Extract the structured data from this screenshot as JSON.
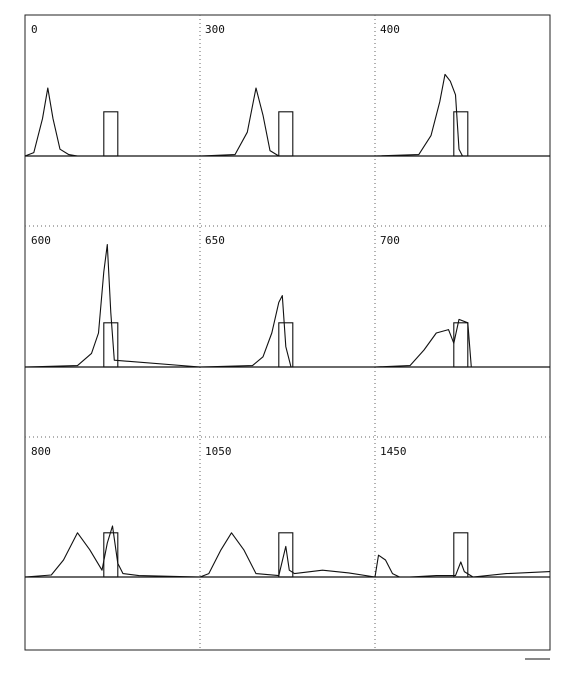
{
  "chart_data": {
    "type": "line",
    "title": "",
    "xlabel": "",
    "ylabel": "",
    "grid": true,
    "layout": "3x3 small multiples",
    "panels": [
      {
        "label": "0",
        "packet": {
          "x": [
            0.0,
            0.05,
            0.1,
            0.13,
            0.16,
            0.2,
            0.25,
            0.3,
            1.0
          ],
          "y": [
            0.0,
            0.05,
            0.55,
            1.0,
            0.55,
            0.1,
            0.02,
            0.0,
            0.0
          ]
        },
        "barrier": {
          "x_start": 0.45,
          "x_end": 0.53,
          "height": 0.65
        }
      },
      {
        "label": "300",
        "packet": {
          "x": [
            0.0,
            0.2,
            0.27,
            0.32,
            0.36,
            0.4,
            0.45,
            1.0
          ],
          "y": [
            0.0,
            0.02,
            0.35,
            1.0,
            0.6,
            0.08,
            0.0,
            0.0
          ]
        },
        "barrier": {
          "x_start": 0.45,
          "x_end": 0.53,
          "height": 0.65
        }
      },
      {
        "label": "400",
        "packet": {
          "x": [
            0.0,
            0.25,
            0.32,
            0.37,
            0.4,
            0.43,
            0.46,
            0.48,
            0.5,
            1.0
          ],
          "y": [
            0.0,
            0.02,
            0.3,
            0.8,
            1.2,
            1.1,
            0.9,
            0.1,
            0.0,
            0.0
          ]
        },
        "barrier": {
          "x_start": 0.45,
          "x_end": 0.53,
          "height": 0.65
        }
      },
      {
        "label": "600",
        "packet": {
          "x": [
            0.0,
            0.3,
            0.38,
            0.42,
            0.45,
            0.47,
            0.49,
            0.51,
            1.0
          ],
          "y": [
            0.0,
            0.02,
            0.2,
            0.5,
            1.4,
            1.8,
            0.8,
            0.1,
            0.0
          ]
        },
        "barrier": {
          "x_start": 0.45,
          "x_end": 0.53,
          "height": 0.65
        }
      },
      {
        "label": "650",
        "packet": {
          "x": [
            0.0,
            0.3,
            0.36,
            0.41,
            0.45,
            0.47,
            0.49,
            0.52,
            1.0
          ],
          "y": [
            0.0,
            0.02,
            0.15,
            0.5,
            0.95,
            1.05,
            0.3,
            0.0,
            0.0
          ]
        },
        "barrier": {
          "x_start": 0.45,
          "x_end": 0.53,
          "height": 0.65
        }
      },
      {
        "label": "700",
        "packet": {
          "x": [
            0.0,
            0.2,
            0.28,
            0.35,
            0.42,
            0.45,
            0.48,
            0.53,
            0.55,
            1.0
          ],
          "y": [
            0.0,
            0.02,
            0.25,
            0.5,
            0.55,
            0.35,
            0.7,
            0.65,
            0.0,
            0.0
          ]
        },
        "barrier": {
          "x_start": 0.45,
          "x_end": 0.53,
          "height": 0.65
        }
      },
      {
        "label": "800",
        "packet": {
          "x": [
            0.0,
            0.15,
            0.22,
            0.3,
            0.37,
            0.44,
            0.47,
            0.5,
            0.53,
            0.56,
            0.65,
            1.0
          ],
          "y": [
            0.0,
            0.03,
            0.25,
            0.65,
            0.4,
            0.1,
            0.5,
            0.75,
            0.2,
            0.05,
            0.02,
            0.0
          ]
        },
        "barrier": {
          "x_start": 0.45,
          "x_end": 0.53,
          "height": 0.65
        }
      },
      {
        "label": "1050",
        "packet": {
          "x": [
            0.0,
            0.05,
            0.12,
            0.18,
            0.25,
            0.32,
            0.45,
            0.49,
            0.51,
            0.54,
            0.7,
            0.85,
            1.0
          ],
          "y": [
            0.0,
            0.05,
            0.4,
            0.65,
            0.4,
            0.05,
            0.02,
            0.45,
            0.1,
            0.05,
            0.1,
            0.06,
            0.0
          ]
        },
        "barrier": {
          "x_start": 0.45,
          "x_end": 0.53,
          "height": 0.65
        }
      },
      {
        "label": "1450",
        "packet": {
          "x": [
            0.0,
            0.02,
            0.06,
            0.1,
            0.14,
            0.2,
            0.35,
            0.46,
            0.49,
            0.51,
            0.56,
            0.75,
            1.0
          ],
          "y": [
            0.0,
            0.32,
            0.25,
            0.05,
            0.0,
            0.0,
            0.02,
            0.02,
            0.22,
            0.08,
            0.0,
            0.05,
            0.08
          ]
        },
        "barrier": {
          "x_start": 0.45,
          "x_end": 0.53,
          "height": 0.65
        }
      }
    ]
  }
}
